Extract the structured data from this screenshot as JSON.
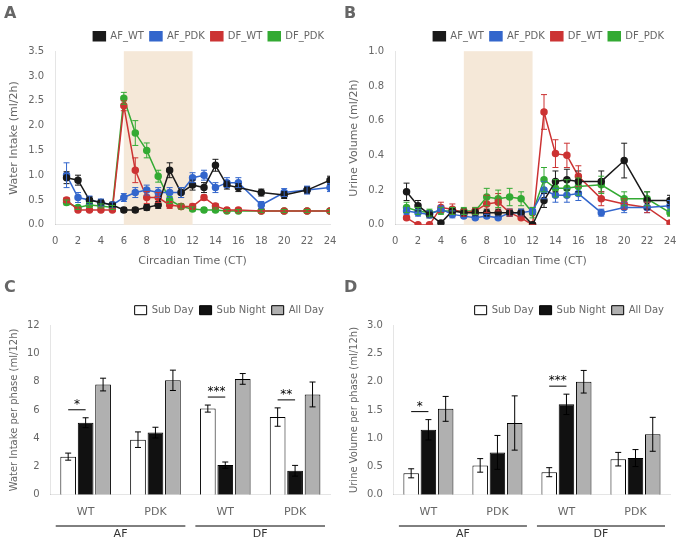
{
  "chart_data": [
    {
      "type": "line",
      "title": "A",
      "x": [
        1,
        2,
        3,
        4,
        5,
        6,
        7,
        8,
        9,
        10,
        11,
        12,
        13,
        14,
        15,
        16,
        18,
        20,
        22,
        24
      ],
      "xlabel": "Circadian Time (CT)",
      "ylabel": "Water Intake (ml/2h)",
      "xlim": [
        0,
        24
      ],
      "xticks": [
        0,
        2,
        4,
        6,
        8,
        10,
        12,
        14,
        16,
        18,
        20,
        22,
        24
      ],
      "ylim": [
        0,
        3.5
      ],
      "yticks": [
        {
          "value": 0,
          "label": "0.0"
        },
        0.5,
        {
          "value": 1,
          "label": "1.0"
        },
        1.5,
        {
          "value": 2,
          "label": "2.0"
        },
        2.5,
        {
          "value": 3,
          "label": "3.0"
        },
        3.5
      ],
      "grid": false,
      "legend": "upper right",
      "marker": "circle",
      "shaded": {
        "x": [
          6,
          12
        ],
        "color": "#f5e8d8"
      },
      "series": [
        {
          "name": "AF_WT",
          "color": "#1a1a1a",
          "values": [
            0.95,
            0.9,
            0.5,
            0.45,
            0.4,
            0.3,
            0.3,
            0.35,
            0.4,
            1.1,
            0.65,
            0.8,
            0.75,
            1.2,
            0.8,
            0.75,
            0.65,
            0.6,
            0.7,
            0.9
          ],
          "errors": [
            0.12,
            0.1,
            0.07,
            0.06,
            0.05,
            0.05,
            0.05,
            0.06,
            0.07,
            0.15,
            0.1,
            0.1,
            0.1,
            0.12,
            0.08,
            0.08,
            0.07,
            0.07,
            0.07,
            0.08
          ]
        },
        {
          "name": "AF_PDK",
          "color": "#3366cc",
          "values": [
            1.0,
            0.55,
            0.5,
            0.45,
            0.4,
            0.55,
            0.65,
            0.7,
            0.65,
            0.65,
            0.65,
            0.95,
            1.0,
            0.75,
            0.85,
            0.85,
            0.4,
            0.65,
            0.7,
            0.75
          ],
          "errors": [
            0.25,
            0.1,
            0.08,
            0.07,
            0.06,
            0.08,
            0.1,
            0.1,
            0.1,
            0.1,
            0.1,
            0.1,
            0.1,
            0.1,
            0.1,
            0.1,
            0.07,
            0.08,
            0.08,
            0.08
          ]
        },
        {
          "name": "DF_WT",
          "color": "#cc3333",
          "values": [
            0.5,
            0.3,
            0.3,
            0.3,
            0.3,
            2.4,
            1.1,
            0.55,
            0.55,
            0.4,
            0.37,
            0.37,
            0.55,
            0.38,
            0.3,
            0.3,
            0.28,
            0.28,
            0.28,
            0.28
          ],
          "errors": [
            0.05,
            0.03,
            0.03,
            0.03,
            0.03,
            0.1,
            0.25,
            0.12,
            0.1,
            0.07,
            0.05,
            0.05,
            0.05,
            0.05,
            0.04,
            0.04,
            0.03,
            0.03,
            0.03,
            0.03
          ]
        },
        {
          "name": "DF_PDK",
          "color": "#33aa33",
          "values": [
            0.45,
            0.35,
            0.4,
            0.38,
            0.35,
            2.55,
            1.85,
            1.5,
            0.98,
            0.5,
            0.37,
            0.32,
            0.3,
            0.3,
            0.28,
            0.28,
            0.28,
            0.28,
            0.28,
            0.28
          ],
          "errors": [
            0.05,
            0.04,
            0.05,
            0.04,
            0.04,
            0.12,
            0.25,
            0.15,
            0.12,
            0.07,
            0.05,
            0.04,
            0.04,
            0.04,
            0.03,
            0.03,
            0.03,
            0.03,
            0.03,
            0.03
          ]
        }
      ]
    },
    {
      "type": "line",
      "title": "B",
      "x": [
        1,
        2,
        3,
        4,
        5,
        6,
        7,
        8,
        9,
        10,
        11,
        12,
        13,
        14,
        15,
        16,
        18,
        20,
        22,
        24
      ],
      "xlabel": "Circadian Time (CT)",
      "ylabel": "Urine Volume (ml/2h)",
      "xlim": [
        0,
        24
      ],
      "xticks": [
        0,
        2,
        4,
        6,
        8,
        10,
        12,
        14,
        16,
        18,
        20,
        22,
        24
      ],
      "ylim": [
        0,
        1
      ],
      "yticks": [
        {
          "value": 0,
          "label": "0.0"
        },
        0.2,
        0.4,
        0.6,
        0.8,
        {
          "value": 1,
          "label": "1.0"
        }
      ],
      "grid": false,
      "legend": "upper right",
      "marker": "circle",
      "shaded": {
        "x": [
          6,
          12
        ],
        "color": "#f5e8d8"
      },
      "series": [
        {
          "name": "AF_WT",
          "color": "#1a1a1a",
          "values": [
            0.19,
            0.11,
            0.06,
            0.01,
            0.08,
            0.07,
            0.07,
            0.07,
            0.07,
            0.07,
            0.07,
            0.0,
            0.14,
            0.25,
            0.26,
            0.25,
            0.25,
            0.37,
            0.14,
            0.14
          ],
          "errors": [
            0.05,
            0.03,
            0.02,
            0.01,
            0.02,
            0.02,
            0.02,
            0.02,
            0.02,
            0.02,
            0.02,
            0.0,
            0.04,
            0.06,
            0.06,
            0.06,
            0.06,
            0.1,
            0.05,
            0.03
          ]
        },
        {
          "name": "AF_PDK",
          "color": "#3366cc",
          "values": [
            0.08,
            0.07,
            0.06,
            0.09,
            0.06,
            0.05,
            0.04,
            0.05,
            0.04,
            0.07,
            0.07,
            0.08,
            0.2,
            0.17,
            0.17,
            0.18,
            0.07,
            0.1,
            0.1,
            0.11
          ],
          "errors": [
            0.02,
            0.02,
            0.02,
            0.02,
            0.02,
            0.01,
            0.01,
            0.01,
            0.01,
            0.02,
            0.02,
            0.02,
            0.05,
            0.04,
            0.04,
            0.04,
            0.02,
            0.03,
            0.03,
            0.03
          ]
        },
        {
          "name": "DF_WT",
          "color": "#cc3333",
          "values": [
            0.04,
            0.0,
            0.0,
            0.1,
            0.09,
            0.07,
            0.08,
            0.12,
            0.13,
            0.07,
            0.04,
            0.0,
            0.65,
            0.41,
            0.4,
            0.28,
            0.15,
            0.12,
            0.1,
            0.01
          ],
          "errors": [
            0.01,
            0.0,
            0.0,
            0.03,
            0.03,
            0.02,
            0.02,
            0.05,
            0.05,
            0.02,
            0.01,
            0.0,
            0.1,
            0.08,
            0.07,
            0.06,
            0.04,
            0.03,
            0.03,
            0.01
          ]
        },
        {
          "name": "DF_PDK",
          "color": "#33aa33",
          "values": [
            0.1,
            0.08,
            0.07,
            0.08,
            0.08,
            0.08,
            0.08,
            0.16,
            0.15,
            0.16,
            0.15,
            0.07,
            0.26,
            0.21,
            0.21,
            0.22,
            0.23,
            0.15,
            0.15,
            0.07
          ],
          "errors": [
            0.03,
            0.02,
            0.02,
            0.02,
            0.02,
            0.02,
            0.02,
            0.05,
            0.05,
            0.05,
            0.04,
            0.03,
            0.07,
            0.05,
            0.05,
            0.05,
            0.05,
            0.04,
            0.04,
            0.02
          ]
        }
      ]
    },
    {
      "type": "bar",
      "title": "C",
      "categories": [
        "WT",
        "PDK",
        "WT",
        "PDK"
      ],
      "category_groups": [
        "AF",
        "AF",
        "DF",
        "DF"
      ],
      "ylabel": "Water Intake per phase (ml/12h)",
      "ylim": [
        0,
        12
      ],
      "yticks": [
        0,
        2,
        4,
        6,
        8,
        10,
        12
      ],
      "grid": false,
      "legend": "upper right",
      "significance": [
        "*",
        null,
        "***",
        "**"
      ],
      "series": [
        {
          "name": "Sub Day",
          "color": "#ffffff",
          "values": [
            2.7,
            3.9,
            6.1,
            5.5
          ],
          "errors": [
            0.25,
            0.55,
            0.25,
            0.65
          ]
        },
        {
          "name": "Sub Night",
          "color": "#111111",
          "values": [
            5.1,
            4.4,
            2.1,
            1.7
          ],
          "errors": [
            0.35,
            0.38,
            0.22,
            0.38
          ]
        },
        {
          "name": "All Day",
          "color": "#b0b0b0",
          "values": [
            7.8,
            8.1,
            8.2,
            7.1
          ],
          "errors": [
            0.45,
            0.72,
            0.38,
            0.88
          ]
        }
      ]
    },
    {
      "type": "bar",
      "title": "D",
      "categories": [
        "WT",
        "PDK",
        "WT",
        "PDK"
      ],
      "category_groups": [
        "AF",
        "AF",
        "DF",
        "DF"
      ],
      "ylabel": "Urine Volume per phase (ml/12h)",
      "ylim": [
        0,
        3
      ],
      "yticks": [
        {
          "value": 0,
          "label": "0.0"
        },
        0.5,
        {
          "value": 1,
          "label": "1.0"
        },
        1.5,
        {
          "value": 2,
          "label": "2.0"
        },
        2.5,
        {
          "value": 3,
          "label": "3.0"
        }
      ],
      "grid": false,
      "legend": "upper right",
      "significance": [
        "*",
        null,
        "***",
        null
      ],
      "series": [
        {
          "name": "Sub Day",
          "color": "#ffffff",
          "values": [
            0.38,
            0.52,
            0.4,
            0.63
          ],
          "errors": [
            0.08,
            0.12,
            0.08,
            0.12
          ]
        },
        {
          "name": "Sub Night",
          "color": "#111111",
          "values": [
            1.15,
            0.75,
            1.6,
            0.65
          ],
          "errors": [
            0.18,
            0.3,
            0.18,
            0.15
          ]
        },
        {
          "name": "All Day",
          "color": "#b0b0b0",
          "values": [
            1.52,
            1.27,
            2.0,
            1.07
          ],
          "errors": [
            0.22,
            0.48,
            0.2,
            0.3
          ]
        }
      ]
    }
  ]
}
